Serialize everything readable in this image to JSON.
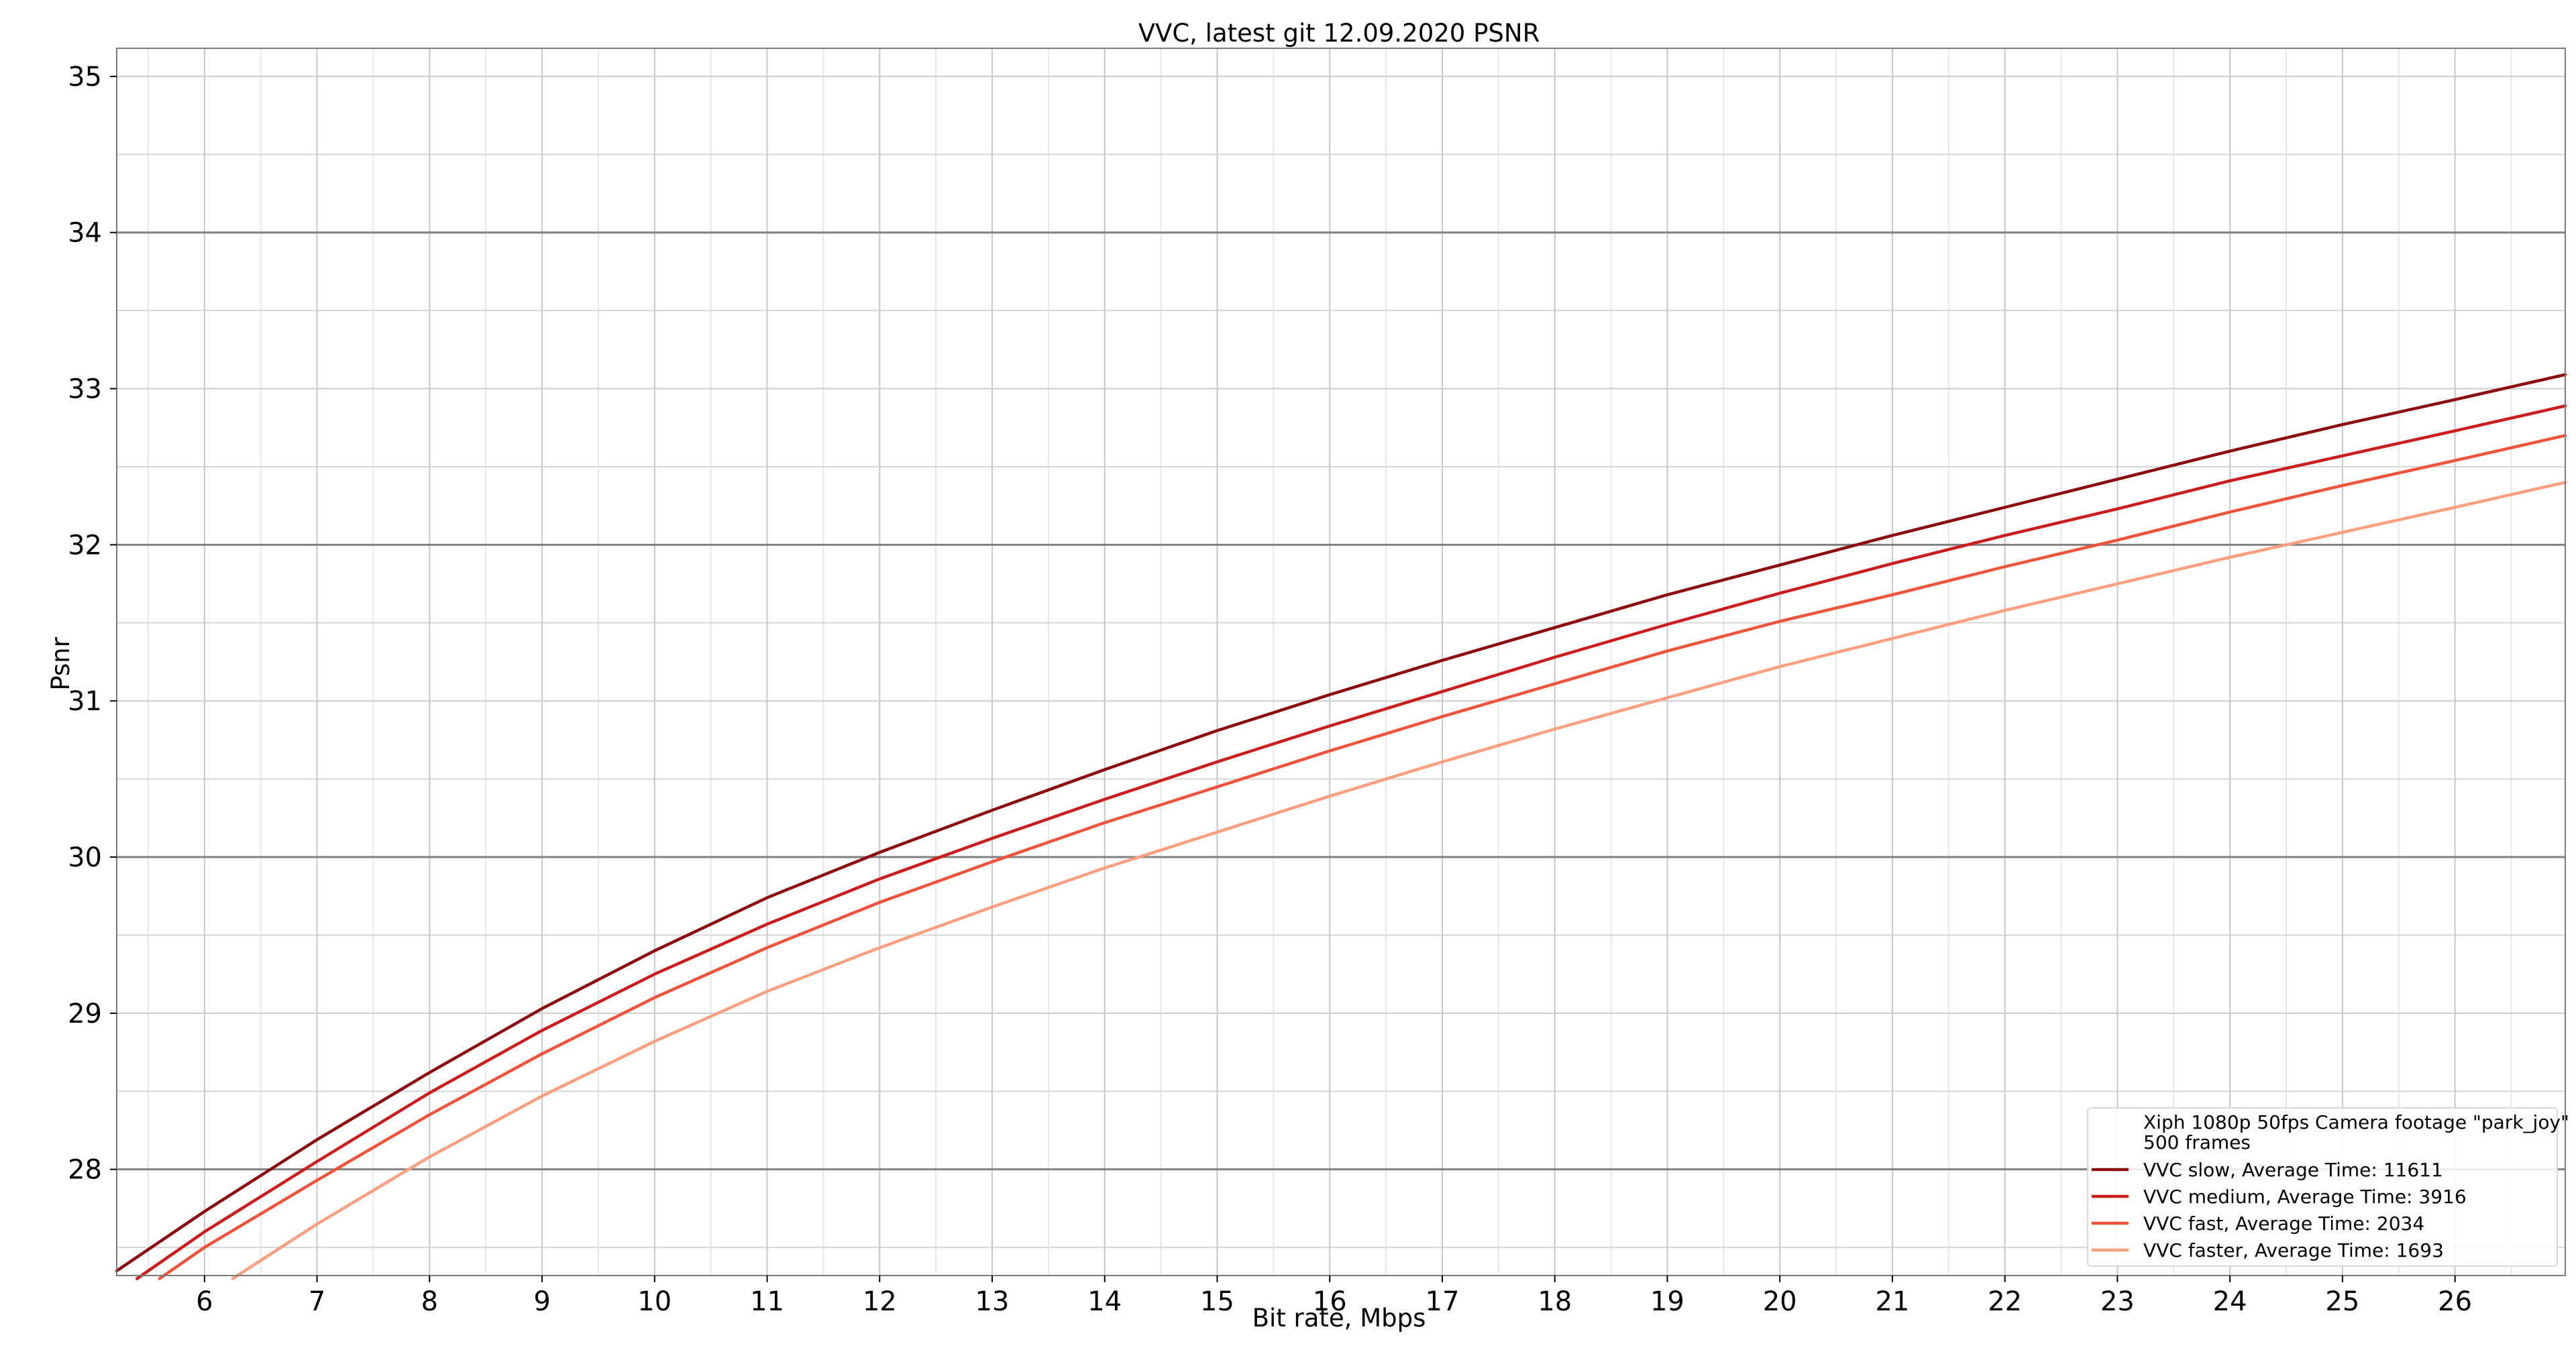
{
  "chart_data": {
    "type": "line",
    "title": "VVC, latest git 12.09.2020 PSNR",
    "xlabel": "Bit rate, Mbps",
    "ylabel": "Psnr",
    "xlim": [
      5.22,
      26.98
    ],
    "ylim": [
      27.32,
      35.18
    ],
    "x_ticks": [
      6,
      7,
      8,
      9,
      10,
      11,
      12,
      13,
      14,
      15,
      16,
      17,
      18,
      19,
      20,
      21,
      22,
      23,
      24,
      25,
      26
    ],
    "y_ticks": [
      28,
      29,
      30,
      31,
      32,
      33,
      34,
      35
    ],
    "grid": true,
    "legend_position": "lower-right",
    "legend_title": [
      "Xiph 1080p 50fps Camera footage \"park_joy\"",
      "500 frames"
    ],
    "series": [
      {
        "name": "VVC slow, Average Time: 11611",
        "color": "#8b0a0f",
        "x": [
          5.22,
          6,
          7,
          8,
          9,
          10,
          11,
          12,
          13,
          14,
          15,
          16,
          17,
          18,
          19,
          20,
          21,
          22,
          23,
          24,
          25,
          26,
          26.98
        ],
        "y": [
          27.35,
          27.73,
          28.19,
          28.62,
          29.03,
          29.4,
          29.74,
          30.03,
          30.3,
          30.56,
          30.81,
          31.04,
          31.26,
          31.47,
          31.68,
          31.87,
          32.06,
          32.24,
          32.42,
          32.6,
          32.77,
          32.93,
          33.09
        ]
      },
      {
        "name": "VVC medium, Average Time: 3916",
        "color": "#cb1d1e",
        "x": [
          5.4,
          6,
          7,
          8,
          9,
          10,
          11,
          12,
          13,
          14,
          15,
          16,
          17,
          18,
          19,
          20,
          21,
          22,
          23,
          24,
          25,
          26,
          26.98
        ],
        "y": [
          27.3,
          27.6,
          28.05,
          28.49,
          28.89,
          29.25,
          29.57,
          29.86,
          30.12,
          30.37,
          30.61,
          30.84,
          31.06,
          31.28,
          31.49,
          31.69,
          31.88,
          32.06,
          32.23,
          32.41,
          32.57,
          32.73,
          32.89
        ]
      },
      {
        "name": "VVC fast, Average Time: 2034",
        "color": "#ef533b",
        "x": [
          5.6,
          6,
          7,
          8,
          9,
          10,
          11,
          12,
          13,
          14,
          15,
          16,
          17,
          18,
          19,
          20,
          21,
          22,
          23,
          24,
          25,
          26,
          26.98
        ],
        "y": [
          27.3,
          27.5,
          27.93,
          28.35,
          28.74,
          29.1,
          29.42,
          29.71,
          29.97,
          30.22,
          30.45,
          30.68,
          30.9,
          31.11,
          31.32,
          31.51,
          31.68,
          31.86,
          32.03,
          32.21,
          32.38,
          32.54,
          32.7
        ]
      },
      {
        "name": "VVC faster, Average Time: 1693",
        "color": "#fc9f81",
        "x": [
          6.25,
          7,
          8,
          9,
          10,
          11,
          12,
          13,
          14,
          15,
          16,
          17,
          18,
          19,
          20,
          21,
          22,
          23,
          24,
          25,
          26,
          26.98
        ],
        "y": [
          27.3,
          27.65,
          28.08,
          28.47,
          28.82,
          29.14,
          29.42,
          29.68,
          29.93,
          30.16,
          30.39,
          30.61,
          30.82,
          31.02,
          31.22,
          31.4,
          31.58,
          31.75,
          31.92,
          32.08,
          32.24,
          32.4
        ]
      }
    ]
  }
}
